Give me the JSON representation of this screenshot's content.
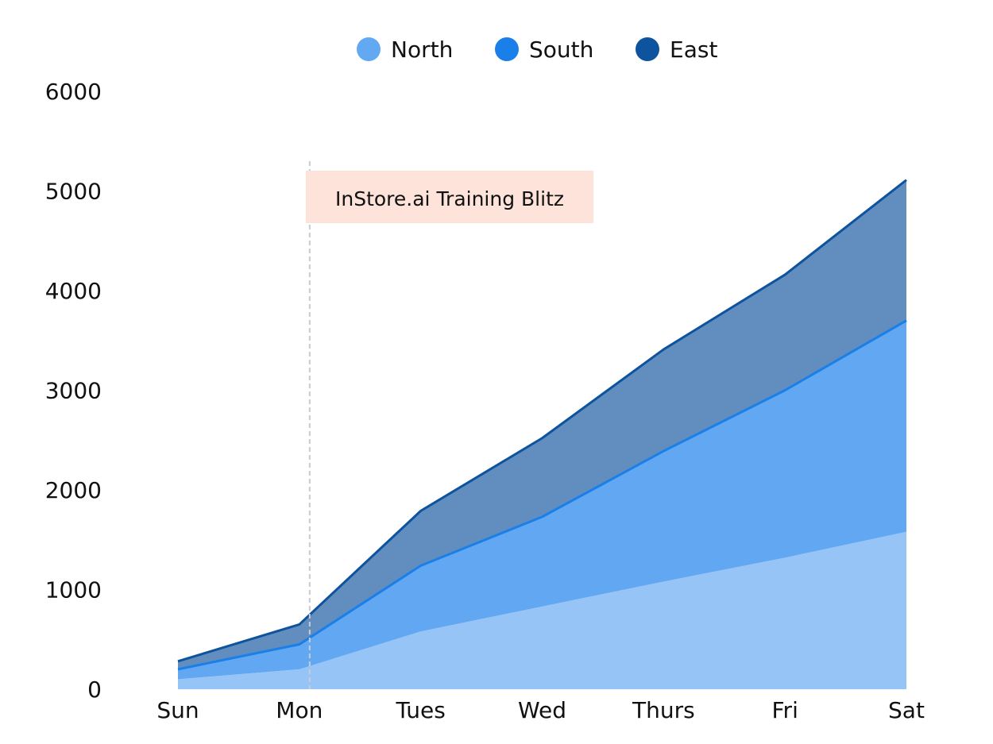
{
  "chart_data": {
    "type": "area",
    "stacked": true,
    "categories": [
      "Sun",
      "Mon",
      "Tues",
      "Wed",
      "Thurs",
      "Fri",
      "Sat"
    ],
    "series": [
      {
        "name": "North",
        "values": [
          100,
          200,
          580,
          830,
          1080,
          1320,
          1580
        ],
        "color": "#63a8f2",
        "fill": "#97c4f6"
      },
      {
        "name": "South",
        "values": [
          100,
          250,
          660,
          900,
          1310,
          1680,
          2120
        ],
        "color": "#1a7fe8",
        "fill": "#62a7f1"
      },
      {
        "name": "East",
        "values": [
          80,
          200,
          550,
          790,
          1020,
          1160,
          1410
        ],
        "color": "#0e539d",
        "fill": "#618ebf"
      }
    ],
    "ylim": [
      0,
      6000
    ],
    "yticks": [
      0,
      1000,
      2000,
      3000,
      4000,
      5000,
      6000
    ],
    "grid": false,
    "legend": "top-center",
    "annotation": {
      "label": "InStore.ai Training Blitz",
      "x": "Mon",
      "line_color": "#c9cdd2",
      "box_color": "#fde3d9"
    }
  }
}
